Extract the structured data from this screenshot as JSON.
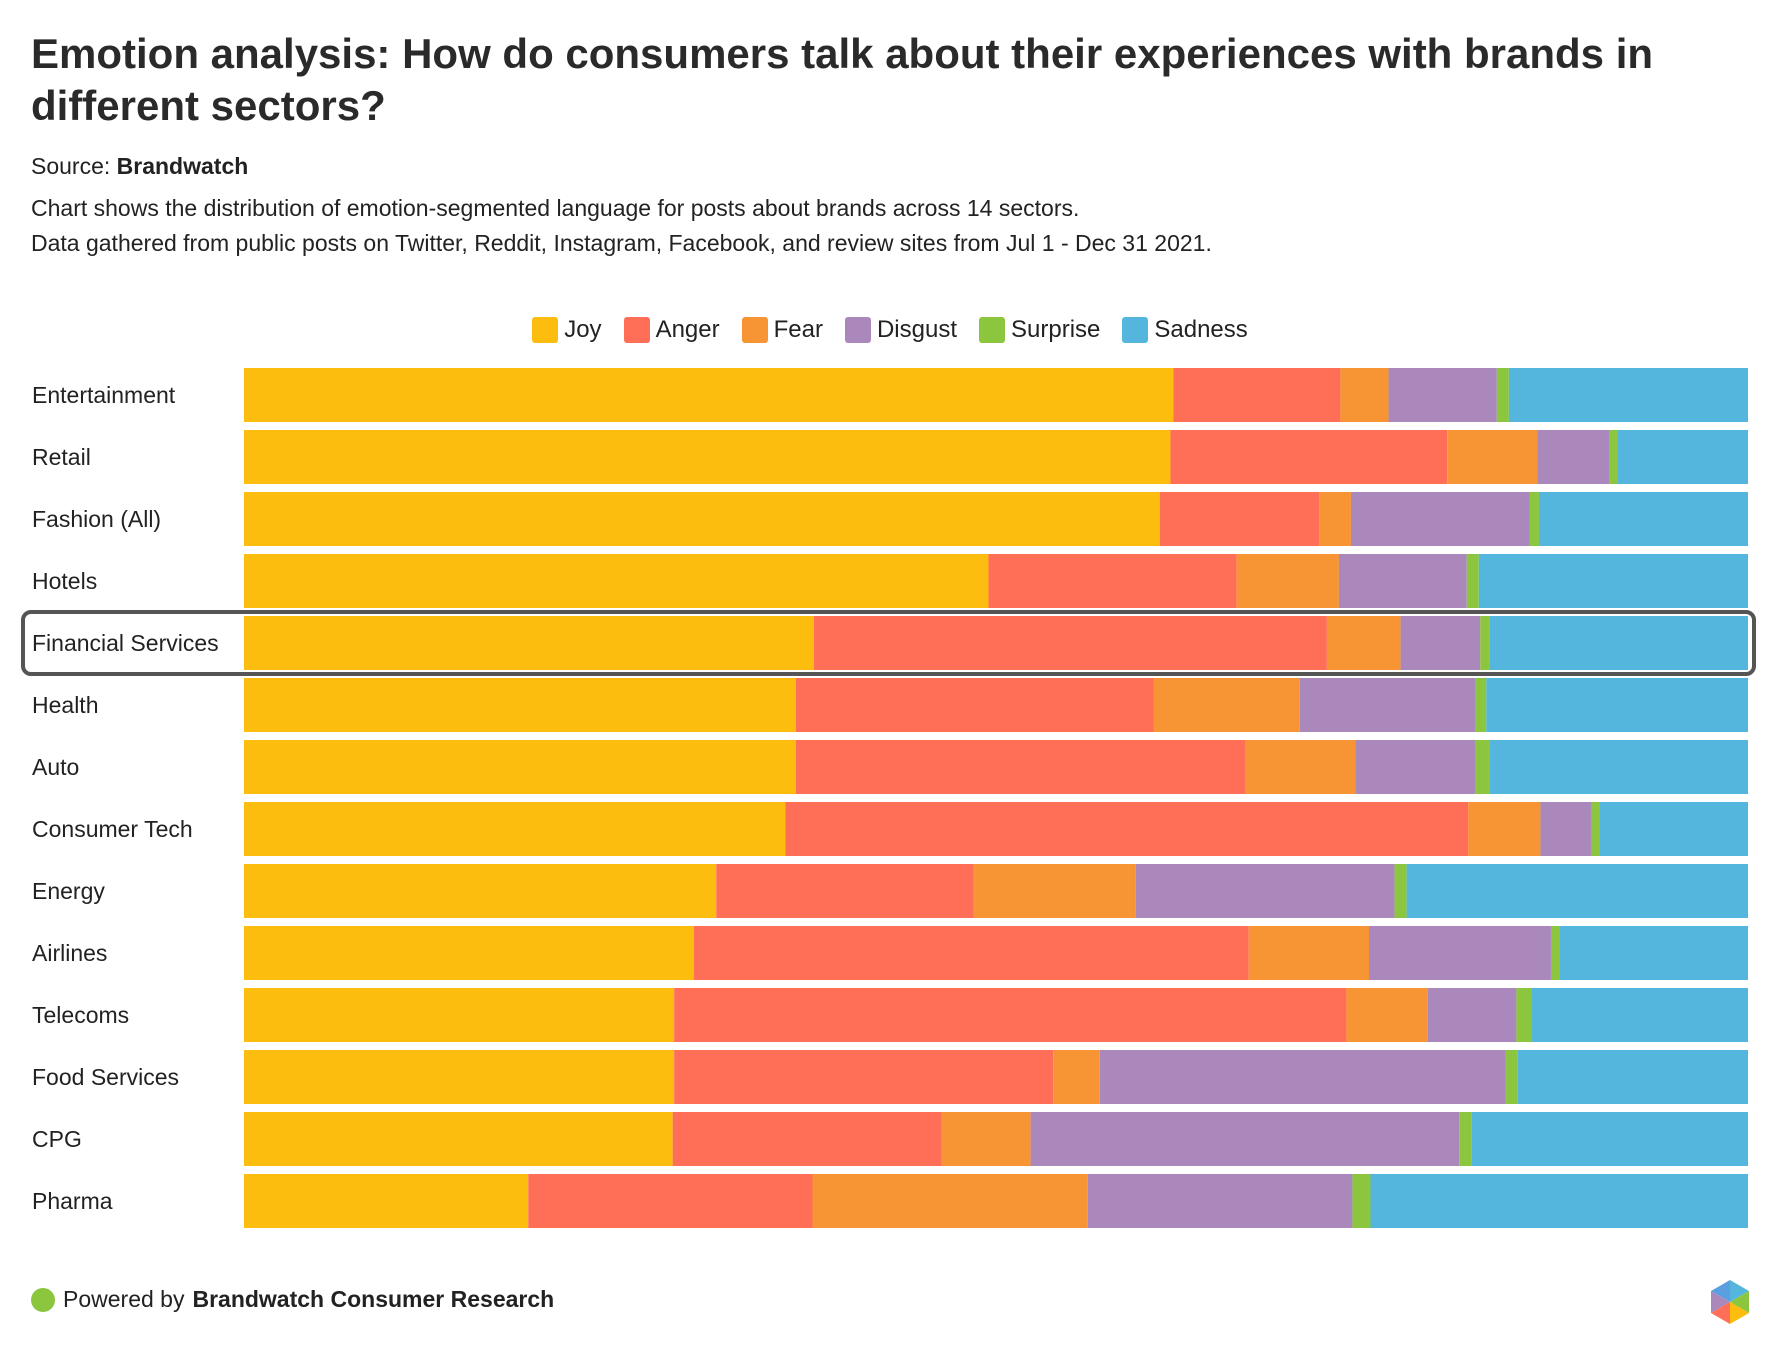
{
  "header": {
    "title": "Emotion analysis: How do consumers talk about their experiences with brands in different sectors?",
    "source_prefix": "Source:",
    "source_name": "Brandwatch",
    "description_line1": "Chart shows the distribution of emotion-segmented language for posts about brands across 14 sectors.",
    "description_line2": "Data gathered from public posts on Twitter, Reddit, Instagram, Facebook, and review sites from Jul 1 - Dec 31 2021."
  },
  "footer": {
    "prefix": "Powered by",
    "brand": "Brandwatch Consumer Research",
    "logo_icon": "brandwatch-logo-icon"
  },
  "chart_data": {
    "type": "bar",
    "orientation": "horizontal",
    "stacked": true,
    "normalized": true,
    "categories": [
      "Entertainment",
      "Retail",
      "Fashion (All)",
      "Hotels",
      "Financial Services",
      "Health",
      "Auto",
      "Consumer Tech",
      "Energy",
      "Airlines",
      "Telecoms",
      "Food Services",
      "CPG",
      "Pharma"
    ],
    "highlighted_category": "Financial Services",
    "series": [
      {
        "name": "Joy",
        "color": "#FCBD0F",
        "values": [
          61.8,
          61.6,
          60.9,
          49.5,
          37.9,
          36.7,
          36.7,
          36.0,
          31.4,
          29.9,
          28.6,
          28.6,
          28.5,
          18.9
        ]
      },
      {
        "name": "Anger",
        "color": "#FF6F57",
        "values": [
          11.1,
          18.4,
          10.6,
          16.5,
          34.1,
          23.8,
          29.9,
          45.4,
          17.1,
          36.9,
          44.7,
          25.2,
          17.9,
          18.9
        ]
      },
      {
        "name": "Fear",
        "color": "#F79433",
        "values": [
          3.2,
          6.0,
          2.1,
          6.8,
          4.9,
          9.7,
          7.3,
          4.8,
          10.8,
          8.0,
          5.4,
          3.1,
          5.9,
          18.3
        ]
      },
      {
        "name": "Disgust",
        "color": "#AA88BB",
        "values": [
          7.2,
          4.8,
          11.9,
          8.5,
          5.3,
          11.7,
          8.0,
          3.4,
          17.2,
          12.1,
          5.9,
          27.0,
          28.5,
          17.6
        ]
      },
      {
        "name": "Surprise",
        "color": "#8CC63F",
        "values": [
          0.8,
          0.5,
          0.6,
          0.8,
          0.6,
          0.7,
          0.9,
          0.5,
          0.8,
          0.6,
          1.0,
          0.8,
          0.8,
          1.2
        ]
      },
      {
        "name": "Sadness",
        "color": "#55B6DD",
        "values": [
          15.9,
          8.7,
          13.9,
          17.9,
          17.2,
          17.4,
          17.2,
          9.9,
          22.7,
          12.5,
          14.4,
          15.3,
          18.4,
          25.1
        ]
      }
    ]
  }
}
